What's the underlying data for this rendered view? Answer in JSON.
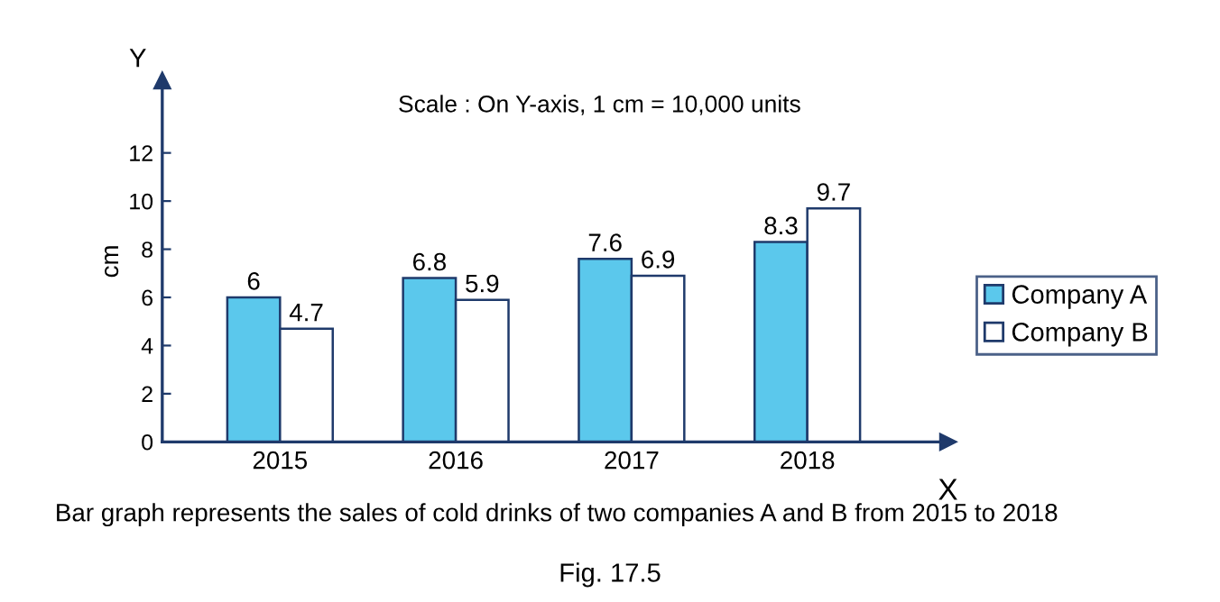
{
  "chart_data": {
    "type": "bar",
    "title": "Scale : On Y-axis, 1 cm = 10,000 units",
    "categories": [
      "2015",
      "2016",
      "2017",
      "2018"
    ],
    "series": [
      {
        "name": "Company A",
        "color": "#5bc8ec",
        "values": [
          6,
          6.8,
          7.6,
          8.3
        ]
      },
      {
        "name": "Company B",
        "color": "#ffffff",
        "values": [
          4.7,
          5.9,
          6.9,
          9.7
        ]
      }
    ],
    "xlabel": "X",
    "ylabel": "cm",
    "ylim": [
      0,
      15
    ],
    "yticks": [
      0,
      2,
      4,
      6,
      8,
      10,
      12
    ],
    "data_labels": true,
    "grid": false,
    "legend": "right",
    "annotations": [
      "Y",
      "Bar graph represents the sales of cold drinks of two companies A and B from 2015 to 2018",
      "Fig. 17.5"
    ]
  }
}
